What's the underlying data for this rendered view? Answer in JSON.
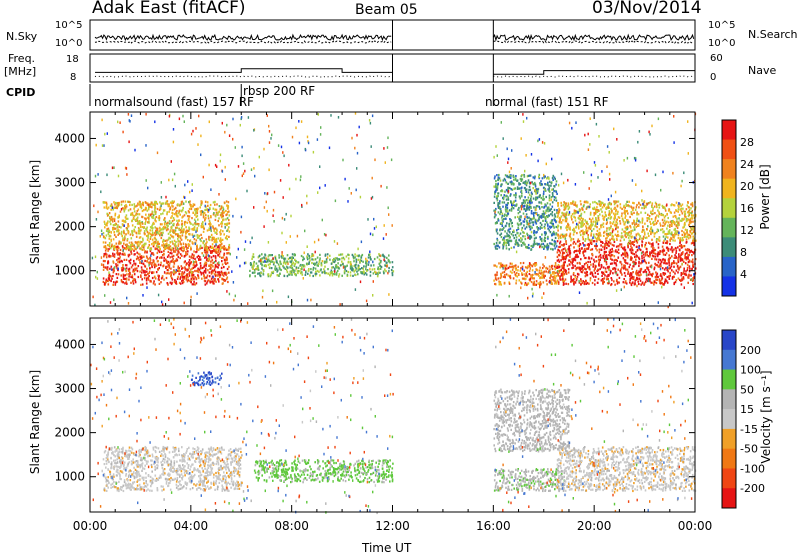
{
  "header": {
    "title": "Adak East (fitACF)",
    "beam": "Beam 05",
    "date": "03/Nov/2014"
  },
  "left_labels": {
    "nsky": "N.Sky",
    "freq": "Freq.",
    "freq_unit": "[MHz]",
    "cpid": "CPID",
    "nsky_ticks": [
      "10^5",
      "10^0"
    ],
    "freq_ticks": [
      "18",
      "8"
    ]
  },
  "right_labels": {
    "nsearch": "N.Search",
    "nave": "Nave",
    "nsearch_ticks": [
      "10^5",
      "10^0"
    ],
    "nave_ticks": [
      "60",
      "0"
    ]
  },
  "cpid_segments": [
    {
      "label": "normalsound (fast) 157 RF",
      "start_h": 0.0
    },
    {
      "label": "rbsp 200 RF",
      "start_h": 6.0
    },
    {
      "label": "normal (fast) 151 RF",
      "start_h": 16.0
    }
  ],
  "colors": {
    "power": [
      "#1432e6",
      "#2864c8",
      "#3c8c78",
      "#64b45a",
      "#b4d23c",
      "#f0b41e",
      "#f0821e",
      "#f05014",
      "#e61414"
    ],
    "velocity": [
      "#2846c8",
      "#4678d2",
      "#5fc83c",
      "#b4b4b4",
      "#c8c8c8",
      "#f0a028",
      "#f07814",
      "#f04614",
      "#e61414"
    ]
  },
  "chart_data": [
    {
      "type": "heatmap",
      "name": "power",
      "ylabel": "Slant Range [km]",
      "xlabel": "Time UT",
      "xlim": [
        0,
        24
      ],
      "ylim": [
        200,
        4600
      ],
      "yticks": [
        1000,
        2000,
        3000,
        4000
      ],
      "xticks": [
        "00:00",
        "04:00",
        "08:00",
        "12:00",
        "16:00",
        "20:00",
        "00:00"
      ],
      "colorbar": {
        "label": "Power [dB]",
        "ticks": [
          "4",
          "8",
          "12",
          "16",
          "20",
          "24",
          "28"
        ],
        "range": [
          0,
          30
        ]
      },
      "data_gap_h": [
        12.0,
        16.0
      ],
      "features": [
        {
          "t": [
            0.5,
            5.5
          ],
          "range_km": [
            700,
            1600
          ],
          "level_db": 26
        },
        {
          "t": [
            0.5,
            5.5
          ],
          "range_km": [
            1500,
            2600
          ],
          "level_db": 18
        },
        {
          "t": [
            6.3,
            12.0
          ],
          "range_km": [
            900,
            1400
          ],
          "level_db": 12
        },
        {
          "t": [
            16.0,
            18.8
          ],
          "range_km": [
            700,
            1200
          ],
          "level_db": 22
        },
        {
          "t": [
            16.0,
            18.5
          ],
          "range_km": [
            1500,
            3200
          ],
          "level_db": 9
        },
        {
          "t": [
            18.5,
            24.0
          ],
          "range_km": [
            700,
            1700
          ],
          "level_db": 28
        },
        {
          "t": [
            18.5,
            24.0
          ],
          "range_km": [
            1700,
            2600
          ],
          "level_db": 18
        }
      ]
    },
    {
      "type": "heatmap",
      "name": "velocity",
      "ylabel": "Slant Range [km]",
      "xlabel": "Time UT",
      "xlim": [
        0,
        24
      ],
      "ylim": [
        200,
        4600
      ],
      "yticks": [
        1000,
        2000,
        3000,
        4000
      ],
      "xticks": [
        "00:00",
        "04:00",
        "08:00",
        "12:00",
        "16:00",
        "20:00",
        "00:00"
      ],
      "colorbar": {
        "label": "Velocity [m s⁻¹]",
        "ticks": [
          "200",
          "100",
          "50",
          "15",
          "-15",
          "-50",
          "-100",
          "-200"
        ],
        "range": [
          -250,
          250
        ]
      },
      "data_gap_h": [
        12.0,
        16.0
      ],
      "features": [
        {
          "t": [
            0.5,
            6.0
          ],
          "range_km": [
            700,
            1700
          ],
          "vel": 0
        },
        {
          "t": [
            4.0,
            5.2
          ],
          "range_km": [
            3100,
            3400
          ],
          "vel": 200
        },
        {
          "t": [
            6.5,
            12.0
          ],
          "range_km": [
            900,
            1400
          ],
          "vel": 60
        },
        {
          "t": [
            16.0,
            18.8
          ],
          "range_km": [
            700,
            1200
          ],
          "vel": 40
        },
        {
          "t": [
            18.5,
            24.0
          ],
          "range_km": [
            700,
            1700
          ],
          "vel": 0
        },
        {
          "t": [
            16.0,
            19.0
          ],
          "range_km": [
            1600,
            3000
          ],
          "vel": 30
        }
      ]
    }
  ]
}
